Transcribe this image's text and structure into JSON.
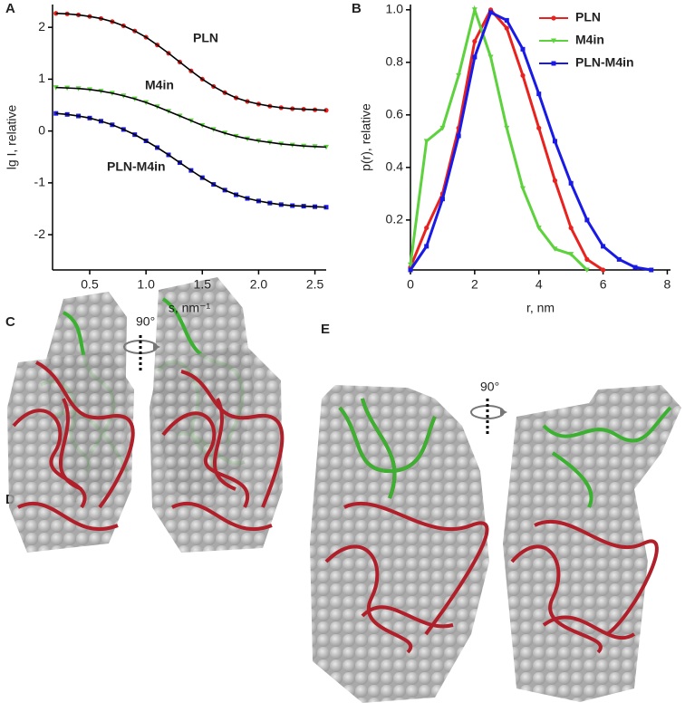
{
  "chart_data": [
    {
      "type": "line",
      "ylabel": "lg I, relative",
      "xlabel": "s, nm⁻¹",
      "x": [
        0.2,
        0.3,
        0.4,
        0.5,
        0.6,
        0.7,
        0.8,
        0.9,
        1.0,
        1.1,
        1.2,
        1.3,
        1.4,
        1.5,
        1.6,
        1.7,
        1.8,
        1.9,
        2.0,
        2.1,
        2.2,
        2.3,
        2.4,
        2.5,
        2.6
      ],
      "series": [
        {
          "name": "PLN",
          "color": "#e8231f",
          "marker": "circle",
          "values": [
            2.27,
            2.26,
            2.24,
            2.21,
            2.17,
            2.11,
            2.03,
            1.93,
            1.81,
            1.66,
            1.5,
            1.33,
            1.16,
            1.0,
            0.86,
            0.74,
            0.64,
            0.57,
            0.52,
            0.48,
            0.45,
            0.43,
            0.42,
            0.41,
            0.4
          ]
        },
        {
          "name": "M4in",
          "color": "#5dd23d",
          "marker": "triangle",
          "values": [
            0.84,
            0.83,
            0.82,
            0.8,
            0.77,
            0.73,
            0.68,
            0.62,
            0.55,
            0.47,
            0.38,
            0.29,
            0.2,
            0.11,
            0.03,
            -0.04,
            -0.1,
            -0.15,
            -0.19,
            -0.22,
            -0.25,
            -0.27,
            -0.29,
            -0.3,
            -0.31
          ]
        },
        {
          "name": "PLN-M4in",
          "color": "#1a1ae6",
          "marker": "square",
          "values": [
            0.34,
            0.32,
            0.29,
            0.25,
            0.19,
            0.12,
            0.03,
            -0.07,
            -0.19,
            -0.32,
            -0.46,
            -0.61,
            -0.76,
            -0.9,
            -1.03,
            -1.14,
            -1.23,
            -1.3,
            -1.35,
            -1.39,
            -1.42,
            -1.44,
            -1.45,
            -1.46,
            -1.47
          ]
        }
      ],
      "fit_line_color": "#000000",
      "xlim": [
        0.17,
        2.6
      ],
      "xticks": [
        0.5,
        {
          "value": 1.0,
          "label": "1.0"
        },
        1.5,
        {
          "value": 2.0,
          "label": "2.0"
        },
        2.5
      ],
      "ylim": [
        -2.68,
        2.44
      ],
      "yticks": [
        -2,
        -1,
        0,
        1,
        2
      ],
      "grid": false,
      "legend": "none"
    },
    {
      "type": "line",
      "ylabel": "p(r), relative",
      "xlabel": "r, nm",
      "x": [
        0,
        0.5,
        1.0,
        1.5,
        2.0,
        2.5,
        3.0,
        3.5,
        4.0,
        4.5,
        5.0,
        5.5,
        6.0,
        6.5,
        7.0,
        7.5
      ],
      "series": [
        {
          "name": "PLN",
          "color": "#e8231f",
          "marker": "circle",
          "values": [
            0.02,
            0.17,
            0.3,
            0.55,
            0.88,
            1.0,
            0.93,
            0.75,
            0.55,
            0.35,
            0.17,
            0.05,
            0.01,
            null,
            null,
            null
          ]
        },
        {
          "name": "M4in",
          "color": "#5dd23d",
          "marker": "triangle",
          "values": [
            0.03,
            0.5,
            0.55,
            0.75,
            1.0,
            0.82,
            0.55,
            0.32,
            0.17,
            0.09,
            0.07,
            0.01,
            null,
            null,
            null,
            null
          ]
        },
        {
          "name": "PLN-M4in",
          "color": "#1a1ae6",
          "marker": "square",
          "values": [
            0.01,
            0.1,
            0.28,
            0.52,
            0.82,
            0.99,
            0.96,
            0.85,
            0.68,
            0.5,
            0.34,
            0.2,
            0.1,
            0.05,
            0.02,
            0.01
          ]
        }
      ],
      "xlim": [
        0,
        8.1
      ],
      "xticks": [
        0,
        2,
        4,
        6,
        8
      ],
      "ylim": [
        0.01,
        1.02
      ],
      "yticks": [
        0.2,
        0.4,
        0.6,
        0.8,
        {
          "value": 1.0,
          "label": "1.0"
        }
      ],
      "grid": false,
      "legend": "upper right"
    }
  ],
  "figure": {
    "panel_labels": [
      "A",
      "B",
      "C",
      "D",
      "E"
    ],
    "rotation_labels": [
      "90°",
      "90°"
    ]
  }
}
